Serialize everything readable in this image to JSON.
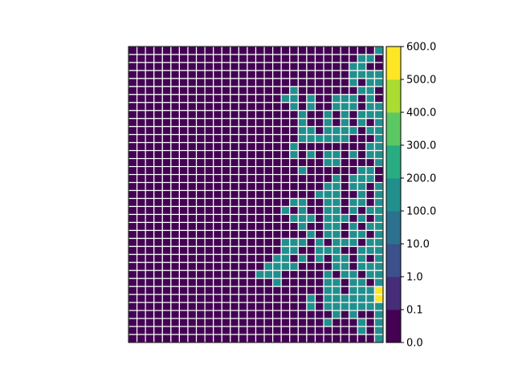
{
  "chart_data": {
    "type": "heatmap",
    "title": "",
    "xlabel": "",
    "ylabel": "",
    "n_rows": 37,
    "n_cols": 30,
    "cell_edge_color": "#ffffff",
    "grid": true,
    "colorbar": {
      "placement": "right",
      "boundaries": [
        0.0,
        0.1,
        1.0,
        10.0,
        100.0,
        200.0,
        300.0,
        400.0,
        500.0,
        600.0
      ],
      "tick_labels": [
        "0.0",
        "0.1",
        "1.0",
        "10.0",
        "100.0",
        "200.0",
        "300.0",
        "400.0",
        "500.0",
        "600.0"
      ],
      "colors": [
        "#440154",
        "#472c7a",
        "#3b518b",
        "#2c718e",
        "#21908d",
        "#27ad81",
        "#5cc863",
        "#aadc32",
        "#fde725"
      ]
    },
    "value_colors": {
      "0": "#440154",
      "1": "#21908d",
      "2": "#fde725"
    },
    "value_legend": {
      "0": "0.0 – 0.1",
      "1": "100.0 – 200.0",
      "2": "500.0 – 600.0"
    },
    "cells": [
      "000000000000000000000000000001",
      "000000000000000000000000000110",
      "000000000000000000000000001100",
      "000000000000000000000000001111",
      "000000000000000000000000001011",
      "000000000000000000010000000110",
      "000000000000000000110100111010",
      "000000000000000000010100111011",
      "000000000000000000001001010111",
      "000000000000000000001001010101",
      "000000000000000000001101111011",
      "000000000000000000001111110001",
      "000000000000000000010000000011",
      "000000000000000000010101101011",
      "000000000000000000000001100001",
      "000000000000000000001000000110",
      "000000000000000000000000101110",
      "000000000000000000000001101101",
      "000000000000000000000011100101",
      "000000000000000000011001101101",
      "000000000000000000101001101011",
      "000000000000000000011101110101",
      "000000000000000000001001101011",
      "000000000000000000000101101101",
      "000000000000000000111010111011",
      "000000000000000000110011100111",
      "000000000000000001101010110101",
      "000000000000000011110000110111",
      "000000000000000111000001011011",
      "000000000000000001000001101101",
      "000000000000000000000001101112",
      "000000000000000000000101111112",
      "000000000000000000000101111111",
      "000000000000000000000000101001",
      "000000000000000000000001000101",
      "000000000000000000000000000101",
      "000000000000000000000000000001"
    ]
  }
}
